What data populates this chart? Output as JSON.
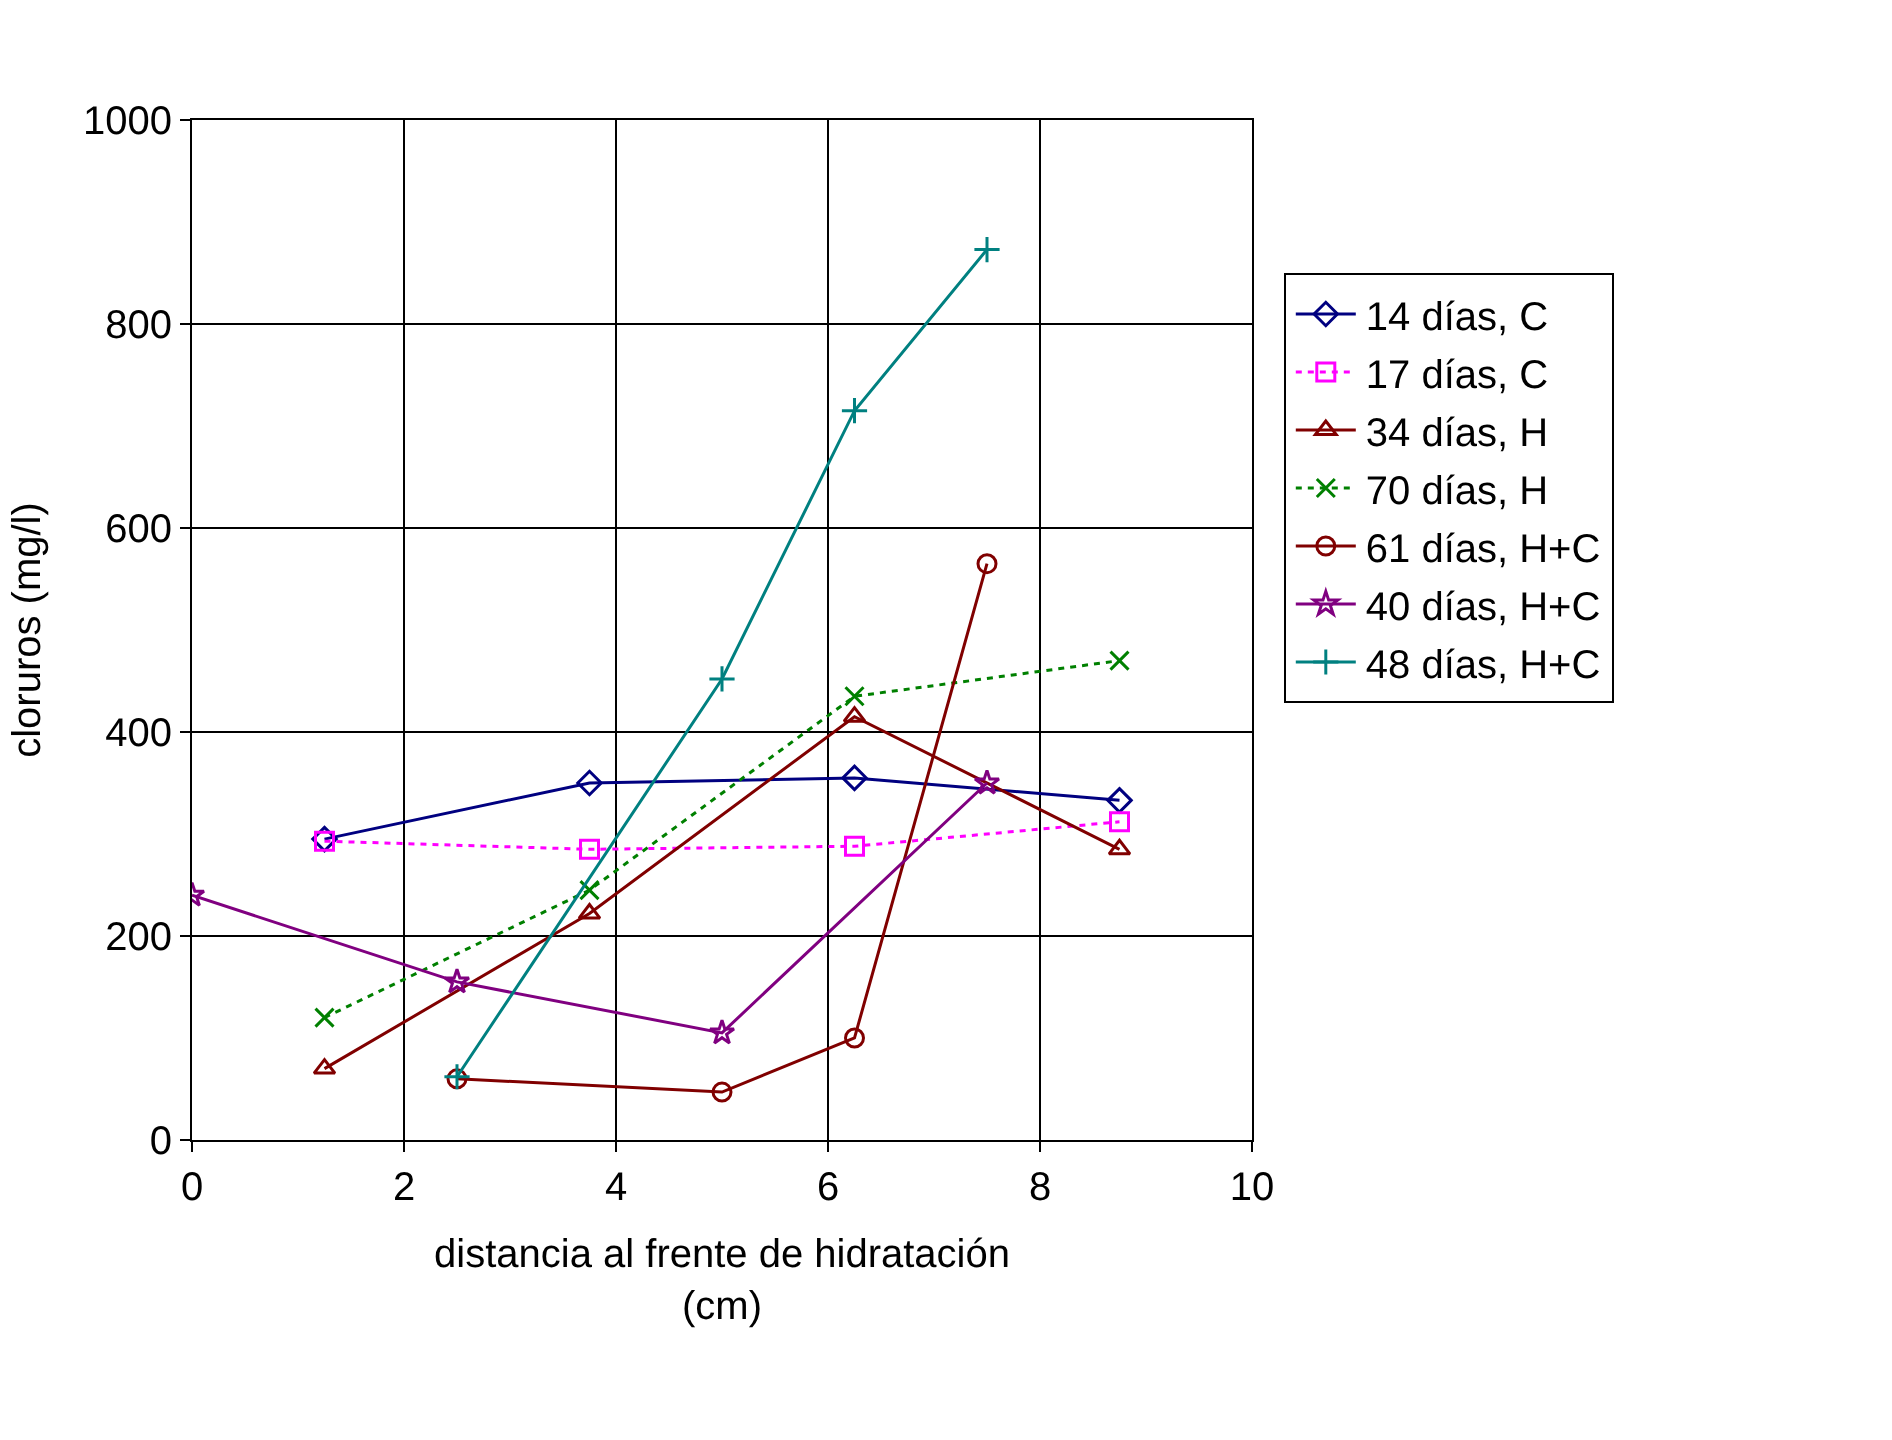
{
  "chart_data": {
    "type": "line",
    "xlabel": "distancia al frente de hidratación\n(cm)",
    "ylabel": "cloruros (mg/l)",
    "xlim": [
      0,
      10
    ],
    "xticks": [
      0,
      2,
      4,
      6,
      8,
      10
    ],
    "ylim": [
      0,
      1000
    ],
    "yticks": [
      0,
      200,
      400,
      600,
      800,
      1000
    ],
    "grid": true,
    "legend": "right",
    "series": [
      {
        "name": "14 días, C",
        "color": "#000080",
        "marker": "diamond",
        "line_style": "solid",
        "x": [
          1.25,
          3.75,
          6.25,
          8.75
        ],
        "values": [
          295,
          350,
          355,
          333
        ]
      },
      {
        "name": "17 días, C",
        "color": "#ff00ff",
        "marker": "square",
        "line_style": "dotted",
        "x": [
          1.25,
          3.75,
          6.25,
          8.75
        ],
        "values": [
          293,
          285,
          288,
          312
        ]
      },
      {
        "name": "34 días, H",
        "color": "#800000",
        "marker": "triangle",
        "line_style": "solid",
        "x": [
          1.25,
          3.75,
          6.25,
          8.75
        ],
        "values": [
          70,
          222,
          415,
          285
        ]
      },
      {
        "name": "70 días, H",
        "color": "#008000",
        "marker": "cross",
        "line_style": "dotted",
        "x": [
          1.25,
          3.75,
          6.25,
          8.75
        ],
        "values": [
          120,
          245,
          435,
          470
        ]
      },
      {
        "name": "61 días, H+C",
        "color": "#800000",
        "marker": "circle",
        "line_style": "solid",
        "x": [
          2.5,
          5,
          6.25,
          7.5
        ],
        "values": [
          60,
          47,
          100,
          565
        ]
      },
      {
        "name": "40 días, H+C",
        "color": "#800080",
        "marker": "star",
        "line_style": "solid",
        "x": [
          0,
          2.5,
          5,
          7.5
        ],
        "values": [
          240,
          155,
          105,
          350
        ]
      },
      {
        "name": "48 días, H+C",
        "color": "#008080",
        "marker": "plus",
        "line_style": "solid",
        "x": [
          2.5,
          5,
          6.25,
          7.5
        ],
        "values": [
          62,
          452,
          715,
          873
        ]
      }
    ]
  }
}
